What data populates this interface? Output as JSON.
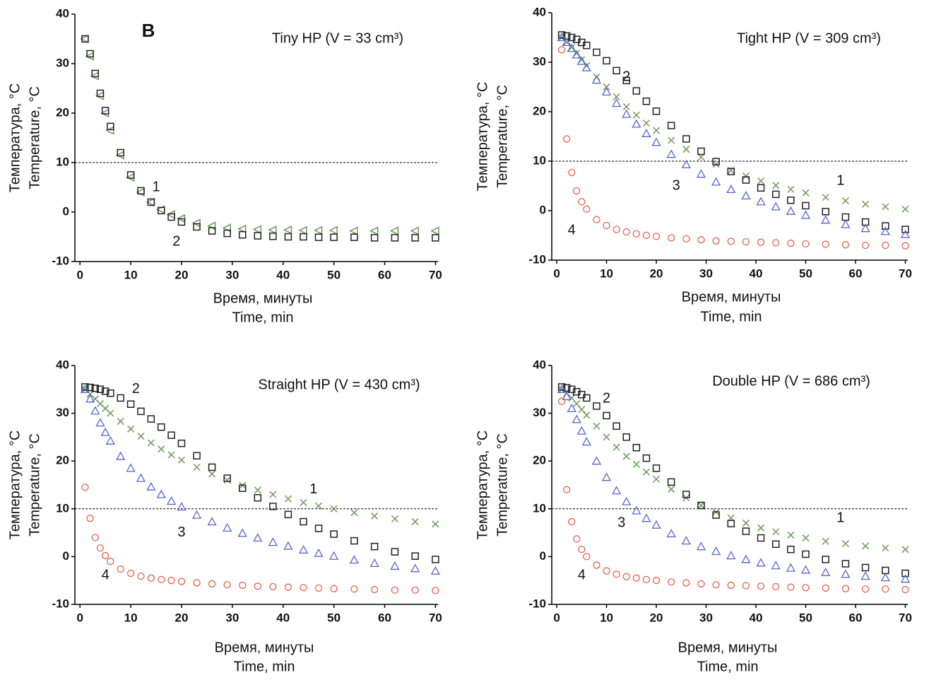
{
  "chart_data": [
    {
      "type": "scatter",
      "title": "Tiny HP (V = 33 cm³)",
      "annotation": "B",
      "xlabel": [
        "Время, минуты",
        "Time, min"
      ],
      "ylabel": [
        "Температура, °C",
        "Temperature, °C"
      ],
      "xlim": [
        -1,
        70.5
      ],
      "ylim": [
        -10,
        40
      ],
      "xticks": [
        0,
        10,
        20,
        30,
        40,
        50,
        60,
        70
      ],
      "yticks": [
        -10,
        0,
        10,
        20,
        30,
        40
      ],
      "hline": 10,
      "x": [
        1,
        2,
        3,
        4,
        5,
        6,
        8,
        10,
        12,
        14,
        16,
        18,
        20,
        23,
        26,
        29,
        32,
        35,
        38,
        41,
        44,
        47,
        50,
        54,
        58,
        62,
        66,
        70
      ],
      "series": [
        {
          "name": "1",
          "color": "#6a9a5a",
          "marker": "triangle-left",
          "values": [
            35,
            31.5,
            27.5,
            23.5,
            20,
            16.5,
            11.5,
            7,
            4,
            2,
            0.5,
            -0.5,
            -1.3,
            -2.2,
            -2.8,
            -3.2,
            -3.4,
            -3.5,
            -3.6,
            -3.6,
            -3.7,
            -3.7,
            -3.7,
            -3.8,
            -3.8,
            -3.8,
            -3.8,
            -3.8
          ]
        },
        {
          "name": "2",
          "color": "#222222",
          "marker": "square",
          "values": [
            35,
            32,
            28,
            24,
            20.5,
            17.3,
            12,
            7.5,
            4.3,
            2,
            0.3,
            -1,
            -2,
            -3,
            -3.8,
            -4.3,
            -4.6,
            -4.8,
            -4.9,
            -5,
            -5,
            -5.1,
            -5.1,
            -5.1,
            -5.2,
            -5.2,
            -5.2,
            -5.2
          ]
        }
      ]
    },
    {
      "type": "scatter",
      "title": "Tight HP (V = 309 cm³)",
      "xlabel": [
        "Время, минуты",
        "Time, min"
      ],
      "ylabel": [
        "Температура, °C",
        "Temperature, °C"
      ],
      "xlim": [
        -1,
        70.5
      ],
      "ylim": [
        -10,
        40
      ],
      "xticks": [
        0,
        10,
        20,
        30,
        40,
        50,
        60,
        70
      ],
      "yticks": [
        -10,
        0,
        10,
        20,
        30,
        40
      ],
      "hline": 10,
      "x": [
        1,
        2,
        3,
        4,
        5,
        6,
        8,
        10,
        12,
        14,
        16,
        18,
        20,
        23,
        26,
        29,
        32,
        35,
        38,
        41,
        44,
        47,
        50,
        54,
        58,
        62,
        66,
        70
      ],
      "series": [
        {
          "name": "1",
          "color": "#6a9a5a",
          "marker": "cross",
          "values": [
            35,
            34,
            33,
            31.8,
            30.5,
            29.3,
            27,
            25,
            23,
            21,
            19.3,
            17.7,
            16.2,
            14.2,
            12.4,
            10.8,
            9.4,
            8.1,
            7,
            6,
            5.1,
            4.3,
            3.6,
            2.7,
            2,
            1.3,
            0.8,
            0.3
          ]
        },
        {
          "name": "2",
          "color": "#222222",
          "marker": "square",
          "values": [
            35.5,
            35.3,
            35,
            34.6,
            34,
            33.4,
            32,
            30.3,
            28.3,
            26.3,
            24.2,
            22.1,
            20.1,
            17.2,
            14.5,
            12,
            9.9,
            7.9,
            6.2,
            4.6,
            3.3,
            2.1,
            1,
            -0.2,
            -1.3,
            -2.3,
            -3.1,
            -3.8
          ]
        },
        {
          "name": "3",
          "color": "#5566cc",
          "marker": "triangle",
          "values": [
            35,
            34,
            32.8,
            31.5,
            30.2,
            28.9,
            26.4,
            24,
            21.7,
            19.5,
            17.5,
            15.6,
            13.8,
            11.4,
            9.3,
            7.4,
            5.8,
            4.3,
            3,
            1.8,
            0.8,
            -0.1,
            -0.9,
            -1.9,
            -2.8,
            -3.6,
            -4.2,
            -4.8
          ]
        },
        {
          "name": "4",
          "color": "#e8604c",
          "marker": "circle",
          "values": [
            32.5,
            14.5,
            7.7,
            4,
            1.8,
            0.3,
            -1.8,
            -3,
            -3.8,
            -4.3,
            -4.7,
            -5,
            -5.2,
            -5.5,
            -5.7,
            -5.9,
            -6.1,
            -6.2,
            -6.3,
            -6.4,
            -6.5,
            -6.6,
            -6.7,
            -6.8,
            -6.9,
            -7,
            -7,
            -7.1
          ]
        }
      ]
    },
    {
      "type": "scatter",
      "title": "Straight HP (V = 430 cm³)",
      "xlabel": [
        "Время, минуты",
        "Time, min"
      ],
      "ylabel": [
        "Температура, °C",
        "Temperature, °C"
      ],
      "xlim": [
        -1,
        70.5
      ],
      "ylim": [
        -10,
        40
      ],
      "xticks": [
        0,
        10,
        20,
        30,
        40,
        50,
        60,
        70
      ],
      "yticks": [
        -10,
        0,
        10,
        20,
        30,
        40
      ],
      "hline": 10,
      "x": [
        1,
        2,
        3,
        4,
        5,
        6,
        8,
        10,
        12,
        14,
        16,
        18,
        20,
        23,
        26,
        29,
        32,
        35,
        38,
        41,
        44,
        47,
        50,
        54,
        58,
        62,
        66,
        70
      ],
      "series": [
        {
          "name": "1",
          "color": "#6a9a5a",
          "marker": "cross",
          "values": [
            35,
            34,
            33,
            32,
            31,
            30,
            28.3,
            26.7,
            25.2,
            23.8,
            22.5,
            21.3,
            20.2,
            18.7,
            17.3,
            16,
            14.9,
            13.9,
            13,
            12.1,
            11.3,
            10.6,
            10,
            9.2,
            8.5,
            7.9,
            7.3,
            6.8
          ]
        },
        {
          "name": "2",
          "color": "#222222",
          "marker": "square",
          "values": [
            35.5,
            35.4,
            35.2,
            35,
            34.6,
            34.2,
            33.2,
            31.9,
            30.4,
            28.8,
            27.1,
            25.4,
            23.7,
            21.1,
            18.7,
            16.4,
            14.3,
            12.3,
            10.5,
            8.8,
            7.3,
            5.9,
            4.7,
            3.3,
            2.1,
            1,
            0.1,
            -0.6
          ]
        },
        {
          "name": "3",
          "color": "#5566cc",
          "marker": "triangle",
          "values": [
            35,
            33,
            30.5,
            28,
            26,
            24.2,
            21,
            18.5,
            16.4,
            14.6,
            13,
            11.6,
            10.4,
            8.7,
            7.3,
            6,
            4.9,
            3.9,
            3,
            2.2,
            1.4,
            0.7,
            0.1,
            -0.7,
            -1.4,
            -2,
            -2.5,
            -3
          ]
        },
        {
          "name": "4",
          "color": "#e8604c",
          "marker": "circle",
          "values": [
            14.5,
            8,
            4,
            1.8,
            0.2,
            -1,
            -2.6,
            -3.5,
            -4.1,
            -4.5,
            -4.8,
            -5,
            -5.2,
            -5.5,
            -5.7,
            -5.9,
            -6,
            -6.2,
            -6.3,
            -6.4,
            -6.5,
            -6.6,
            -6.7,
            -6.8,
            -6.9,
            -7,
            -7,
            -7.1
          ]
        }
      ]
    },
    {
      "type": "scatter",
      "title": "Double HP (V = 686 cm³)",
      "xlabel": [
        "Время, минуты",
        "Time, min"
      ],
      "ylabel": [
        "Температура, °C",
        "Temperature, °C"
      ],
      "xlim": [
        -1,
        70.5
      ],
      "ylim": [
        -10,
        40
      ],
      "xticks": [
        0,
        10,
        20,
        30,
        40,
        50,
        60,
        70
      ],
      "yticks": [
        -10,
        0,
        10,
        20,
        30,
        40
      ],
      "hline": 10,
      "x": [
        1,
        2,
        3,
        4,
        5,
        6,
        8,
        10,
        12,
        14,
        16,
        18,
        20,
        23,
        26,
        29,
        32,
        35,
        38,
        41,
        44,
        47,
        50,
        54,
        58,
        62,
        66,
        70
      ],
      "series": [
        {
          "name": "1",
          "color": "#6a9a5a",
          "marker": "cross",
          "values": [
            35,
            34.2,
            33.2,
            32,
            30.8,
            29.6,
            27.3,
            25,
            22.9,
            21,
            19.3,
            17.7,
            16.2,
            14.1,
            12.3,
            10.7,
            9.3,
            8.1,
            7,
            6,
            5.2,
            4.5,
            3.9,
            3.2,
            2.7,
            2.2,
            1.8,
            1.5
          ]
        },
        {
          "name": "2",
          "color": "#222222",
          "marker": "square",
          "values": [
            35.5,
            35.3,
            35,
            34.5,
            33.9,
            33.2,
            31.5,
            29.5,
            27.3,
            25,
            22.8,
            20.6,
            18.5,
            15.6,
            13,
            10.7,
            8.7,
            6.9,
            5.3,
            3.9,
            2.6,
            1.5,
            0.5,
            -0.6,
            -1.5,
            -2.3,
            -2.9,
            -3.5
          ]
        },
        {
          "name": "3",
          "color": "#5566cc",
          "marker": "triangle",
          "values": [
            35,
            33.5,
            31,
            28.7,
            26.3,
            24,
            20,
            16.6,
            13.8,
            11.5,
            9.6,
            8,
            6.6,
            4.8,
            3.3,
            2.1,
            1.1,
            0.2,
            -0.6,
            -1.3,
            -1.9,
            -2.4,
            -2.8,
            -3.3,
            -3.7,
            -4.1,
            -4.4,
            -4.7
          ]
        },
        {
          "name": "4",
          "color": "#e8604c",
          "marker": "circle",
          "values": [
            32.5,
            14,
            7.3,
            3.7,
            1.5,
            0,
            -1.8,
            -3,
            -3.7,
            -4.2,
            -4.5,
            -4.8,
            -5,
            -5.3,
            -5.5,
            -5.7,
            -5.9,
            -6,
            -6.1,
            -6.2,
            -6.3,
            -6.4,
            -6.5,
            -6.6,
            -6.7,
            -6.8,
            -6.8,
            -6.9
          ]
        }
      ]
    }
  ]
}
